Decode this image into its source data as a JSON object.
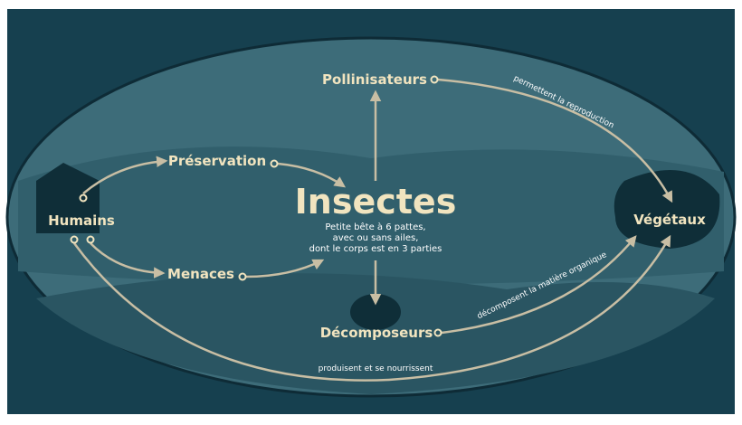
{
  "center": {
    "title": "Insectes",
    "subtitle": [
      "Petite bête à 6 pattes,",
      "avec ou sans ailes,",
      "dont le corps est en 3 parties"
    ]
  },
  "nodes": [
    {
      "label": "Pollinisateurs"
    },
    {
      "label": "Préservation"
    },
    {
      "label": "Humains"
    },
    {
      "label": "Menaces"
    },
    {
      "label": "Végétaux"
    },
    {
      "label": "Décomposeurs"
    }
  ],
  "edges": [
    {
      "label": "permettent la reproduction"
    },
    {
      "label": "décomposent la matière organique"
    },
    {
      "label": "produisent et se nourrissent"
    }
  ]
}
